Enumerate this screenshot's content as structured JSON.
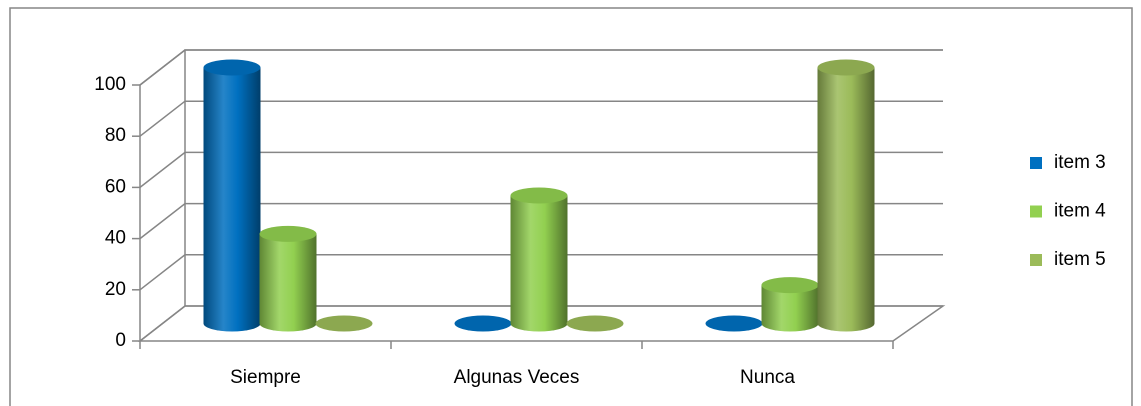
{
  "chart_data": {
    "type": "bar",
    "categories": [
      "Siempre",
      "Algunas Veces",
      "Nunca"
    ],
    "series": [
      {
        "name": "item 3",
        "color": "#0070c0",
        "values": [
          100,
          0,
          0
        ]
      },
      {
        "name": "item 4",
        "color": "#92d050",
        "values": [
          35,
          50,
          15
        ]
      },
      {
        "name": "item 5",
        "color": "#9bbb59",
        "values": [
          0,
          0,
          100
        ]
      }
    ],
    "ylim": [
      0,
      100
    ],
    "yticks": [
      0,
      20,
      40,
      60,
      80,
      100
    ],
    "grid": true,
    "legend": "right"
  }
}
